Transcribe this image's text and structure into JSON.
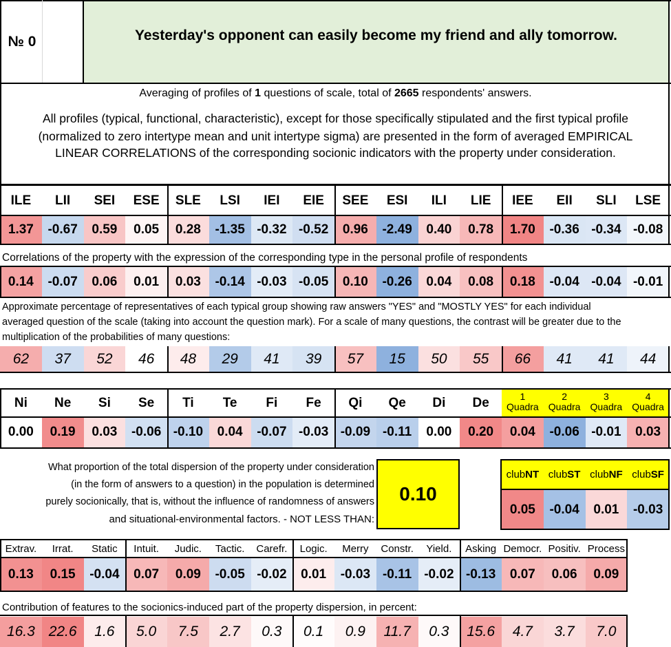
{
  "header": {
    "number": "№ 0",
    "question": "Yesterday's opponent can easily become my friend and ally tomorrow."
  },
  "info": {
    "avg_prefix": "Averaging of profiles of",
    "questions": "1",
    "avg_middle": "questions of scale, total of",
    "respondents": "2665",
    "avg_suffix": "respondents' answers.",
    "desc_1": "All profiles (typical, functional, characteristic), except for those specifically stipulated and the first typical profile",
    "desc_2": "(normalized to zero intertype mean and unit intertype sigma) are presented in the form of averaged EMPIRICAL",
    "desc_3": "LINEAR CORRELATIONS of the corresponding socionic indicators with the property under consideration."
  },
  "types": [
    "ILE",
    "LII",
    "SEI",
    "ESE",
    "SLE",
    "LSI",
    "IEI",
    "EIE",
    "SEE",
    "ESI",
    "ILI",
    "LIE",
    "IEE",
    "EII",
    "SLI",
    "LSE"
  ],
  "profile_values": [
    "1.37",
    "-0.67",
    "0.59",
    "0.05",
    "0.28",
    "-1.35",
    "-0.32",
    "-0.52",
    "0.96",
    "-2.49",
    "0.40",
    "0.78",
    "1.70",
    "-0.36",
    "-0.34",
    "-0.08"
  ],
  "corr_note": "Correlations of the property with the expression of the corresponding type in the personal profile of respondents",
  "corr_values": [
    "0.14",
    "-0.07",
    "0.06",
    "0.01",
    "0.03",
    "-0.14",
    "-0.03",
    "-0.05",
    "0.10",
    "-0.26",
    "0.04",
    "0.08",
    "0.18",
    "-0.04",
    "-0.04",
    "-0.01"
  ],
  "pct_note_1": "Approximate percentage of representatives of each typical group showing raw answers \"YES\" and \"MOSTLY YES\" for each individual",
  "pct_note_2": "averaged question of the scale (taking into account the question mark). For a scale of many questions, the contrast will be greater due to the",
  "pct_note_3": "multiplication of the probabilities of many questions:",
  "pct_values": [
    "62",
    "37",
    "52",
    "46",
    "48",
    "29",
    "41",
    "39",
    "57",
    "15",
    "50",
    "55",
    "66",
    "41",
    "41",
    "44"
  ],
  "functions": [
    "Ni",
    "Ne",
    "Si",
    "Se",
    "Ti",
    "Te",
    "Fi",
    "Fe",
    "Qi",
    "Qe",
    "Di",
    "De"
  ],
  "function_values": [
    "0.00",
    "0.19",
    "0.03",
    "-0.06",
    "-0.10",
    "0.04",
    "-0.07",
    "-0.03",
    "-0.09",
    "-0.11",
    "0.00",
    "0.20"
  ],
  "quadras": [
    {
      "num": "1",
      "label": "Quadra"
    },
    {
      "num": "2",
      "label": "Quadra"
    },
    {
      "num": "3",
      "label": "Quadra"
    },
    {
      "num": "4",
      "label": "Quadra"
    }
  ],
  "quadra_values": [
    "0.04",
    "-0.06",
    "-0.01",
    "0.03"
  ],
  "dispersion": {
    "line_1": "What proportion of the total dispersion of the property under consideration",
    "line_2": "(in the form of answers to a question) in the population is determined",
    "line_3": "purely socionically, that is, without the influence of randomness of answers",
    "line_4": "and situational-environmental factors. - NOT LESS THAN:",
    "value": "0.10"
  },
  "clubs": [
    {
      "prefix": "club",
      "code": "NT"
    },
    {
      "prefix": "club",
      "code": "ST"
    },
    {
      "prefix": "club",
      "code": "NF"
    },
    {
      "prefix": "club",
      "code": "SF"
    }
  ],
  "club_values": [
    "0.05",
    "-0.04",
    "0.01",
    "-0.03"
  ],
  "traits": [
    "Extrav.",
    "Irrat.",
    "Static",
    "Intuit.",
    "Judic.",
    "Tactic.",
    "Carefr.",
    "Logic.",
    "Merry",
    "Constr.",
    "Yield.",
    "Asking",
    "Democr.",
    "Positiv.",
    "Process"
  ],
  "trait_values": [
    "0.13",
    "0.15",
    "-0.04",
    "0.07",
    "0.09",
    "-0.05",
    "-0.02",
    "0.01",
    "-0.03",
    "-0.11",
    "-0.02",
    "-0.13",
    "0.07",
    "0.06",
    "0.09"
  ],
  "contrib_note": "Contribution of features to the socionics-induced part of the property dispersion, in percent:",
  "contrib_values": [
    "16.3",
    "22.6",
    "1.6",
    "5.0",
    "7.5",
    "2.7",
    "0.3",
    "0.1",
    "0.9",
    "11.7",
    "0.3",
    "15.6",
    "4.7",
    "3.7",
    "7.0"
  ],
  "colors": {
    "title_bg": "#e2efd9",
    "highlight_yellow": "#ffff00",
    "red_strong": "#f08080",
    "blue_strong": "#8eb1de"
  }
}
